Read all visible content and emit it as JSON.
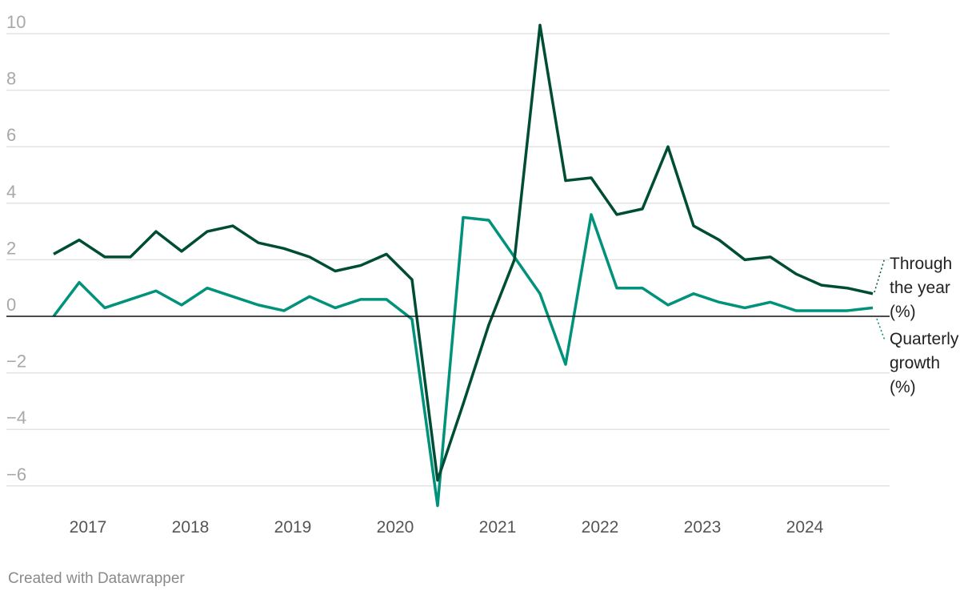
{
  "chart_data": {
    "type": "line",
    "title": "",
    "xlabel": "",
    "ylabel": "",
    "ylim": [
      -7,
      10.5
    ],
    "yticks": [
      10,
      8,
      6,
      4,
      2,
      0,
      -2,
      -4,
      -6
    ],
    "ytick_labels": [
      "10",
      "8",
      "6",
      "4",
      "2",
      "0",
      "−2",
      "−4",
      "−6"
    ],
    "xtick_labels": [
      "2017",
      "2018",
      "2019",
      "2020",
      "2021",
      "2022",
      "2023",
      "2024"
    ],
    "x": [
      "2016-Q3",
      "2016-Q4",
      "2017-Q1",
      "2017-Q2",
      "2017-Q3",
      "2017-Q4",
      "2018-Q1",
      "2018-Q2",
      "2018-Q3",
      "2018-Q4",
      "2019-Q1",
      "2019-Q2",
      "2019-Q3",
      "2019-Q4",
      "2020-Q1",
      "2020-Q2",
      "2020-Q3",
      "2020-Q4",
      "2021-Q1",
      "2021-Q2",
      "2021-Q3",
      "2021-Q4",
      "2022-Q1",
      "2022-Q2",
      "2022-Q3",
      "2022-Q4",
      "2023-Q1",
      "2023-Q2",
      "2023-Q3",
      "2023-Q4",
      "2024-Q1",
      "2024-Q2",
      "2024-Q3"
    ],
    "grid": true,
    "legend": "right, inline labels",
    "series": [
      {
        "name": "Through the year (%)",
        "label_lines": [
          "Through",
          "the year",
          "(%)"
        ],
        "color": "#004d35",
        "values": [
          2.2,
          2.7,
          2.1,
          2.1,
          3.0,
          2.3,
          3.0,
          3.2,
          2.6,
          2.4,
          2.1,
          1.6,
          1.8,
          2.2,
          1.3,
          -5.8,
          -3.1,
          -0.3,
          2.0,
          10.3,
          4.8,
          4.9,
          3.6,
          3.8,
          6.0,
          3.2,
          2.7,
          2.0,
          2.1,
          1.5,
          1.1,
          1.0,
          0.8
        ]
      },
      {
        "name": "Quarterly growth (%)",
        "label_lines": [
          "Quarterly",
          "growth",
          "(%)"
        ],
        "color": "#00927a",
        "values": [
          0.0,
          1.2,
          0.3,
          0.6,
          0.9,
          0.4,
          1.0,
          0.7,
          0.4,
          0.2,
          0.7,
          0.3,
          0.6,
          0.6,
          -0.1,
          -6.7,
          3.5,
          3.4,
          2.1,
          0.8,
          -1.7,
          3.6,
          1.0,
          1.0,
          0.4,
          0.8,
          0.5,
          0.3,
          0.5,
          0.2,
          0.2,
          0.2,
          0.3
        ]
      }
    ]
  },
  "footer": {
    "credit": "Created with Datawrapper"
  }
}
